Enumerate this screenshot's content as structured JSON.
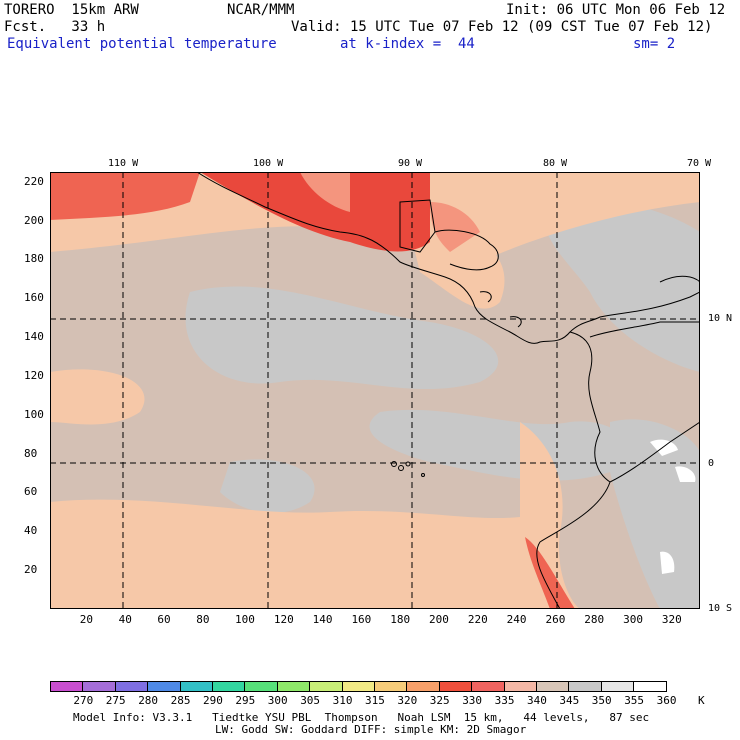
{
  "header": {
    "model": "TORERO  15km ARW",
    "center": "NCAR/MMM",
    "init": "Init: 06 UTC Mon 06 Feb 12",
    "fcst": "Fcst.   33 h",
    "valid": "Valid: 15 UTC Tue 07 Feb 12 (09 CST Tue 07 Feb 12)",
    "field": "Equivalent potential temperature",
    "level": "at k-index =  44",
    "smooth": "sm= 2"
  },
  "map": {
    "lon_labels": [
      "110 W",
      "100 W",
      "90 W",
      "80 W",
      "70 W"
    ],
    "lat_labels": [
      "10 N",
      "0",
      "10 S"
    ],
    "y_ticks": [
      "220",
      "200",
      "180",
      "160",
      "140",
      "120",
      "100",
      "80",
      "60",
      "40",
      "20"
    ],
    "x_ticks": [
      "20",
      "40",
      "60",
      "80",
      "100",
      "120",
      "140",
      "160",
      "180",
      "200",
      "220",
      "240",
      "260",
      "280",
      "300",
      "320"
    ],
    "x_range": [
      0,
      335
    ],
    "y_range": [
      0,
      225
    ],
    "colors": {
      "cool": "#c8c8c8",
      "neutral": "#d4c0b4",
      "warm": "#f6c8a8",
      "hot": "#f4957e",
      "hotter": "#ef6452",
      "hottest": "#e9483c",
      "white": "#ffffff"
    }
  },
  "colorbar": {
    "levels": [
      "270",
      "275",
      "280",
      "285",
      "290",
      "295",
      "300",
      "305",
      "310",
      "315",
      "320",
      "325",
      "330",
      "335",
      "340",
      "345",
      "350",
      "355",
      "360"
    ],
    "unit": "K",
    "colors": [
      "#c94fd0",
      "#a56ed8",
      "#7f6fe2",
      "#4f8ae6",
      "#33c0c6",
      "#33d6a0",
      "#57e07a",
      "#8fe86a",
      "#c8ee78",
      "#f2ea86",
      "#f6cc7a",
      "#f7a06a",
      "#f0503c",
      "#f06460",
      "#f4b8a6",
      "#d8c6b8",
      "#c8c8c8",
      "#e6e6e6",
      "#ffffff"
    ]
  },
  "footer": {
    "line1": "Model Info: V3.3.1   Tiedtke YSU PBL  Thompson   Noah LSM  15 km,   44 levels,   87 sec",
    "line2": "LW: Godd SW: Goddard DIFF: simple KM: 2D Smagor"
  }
}
